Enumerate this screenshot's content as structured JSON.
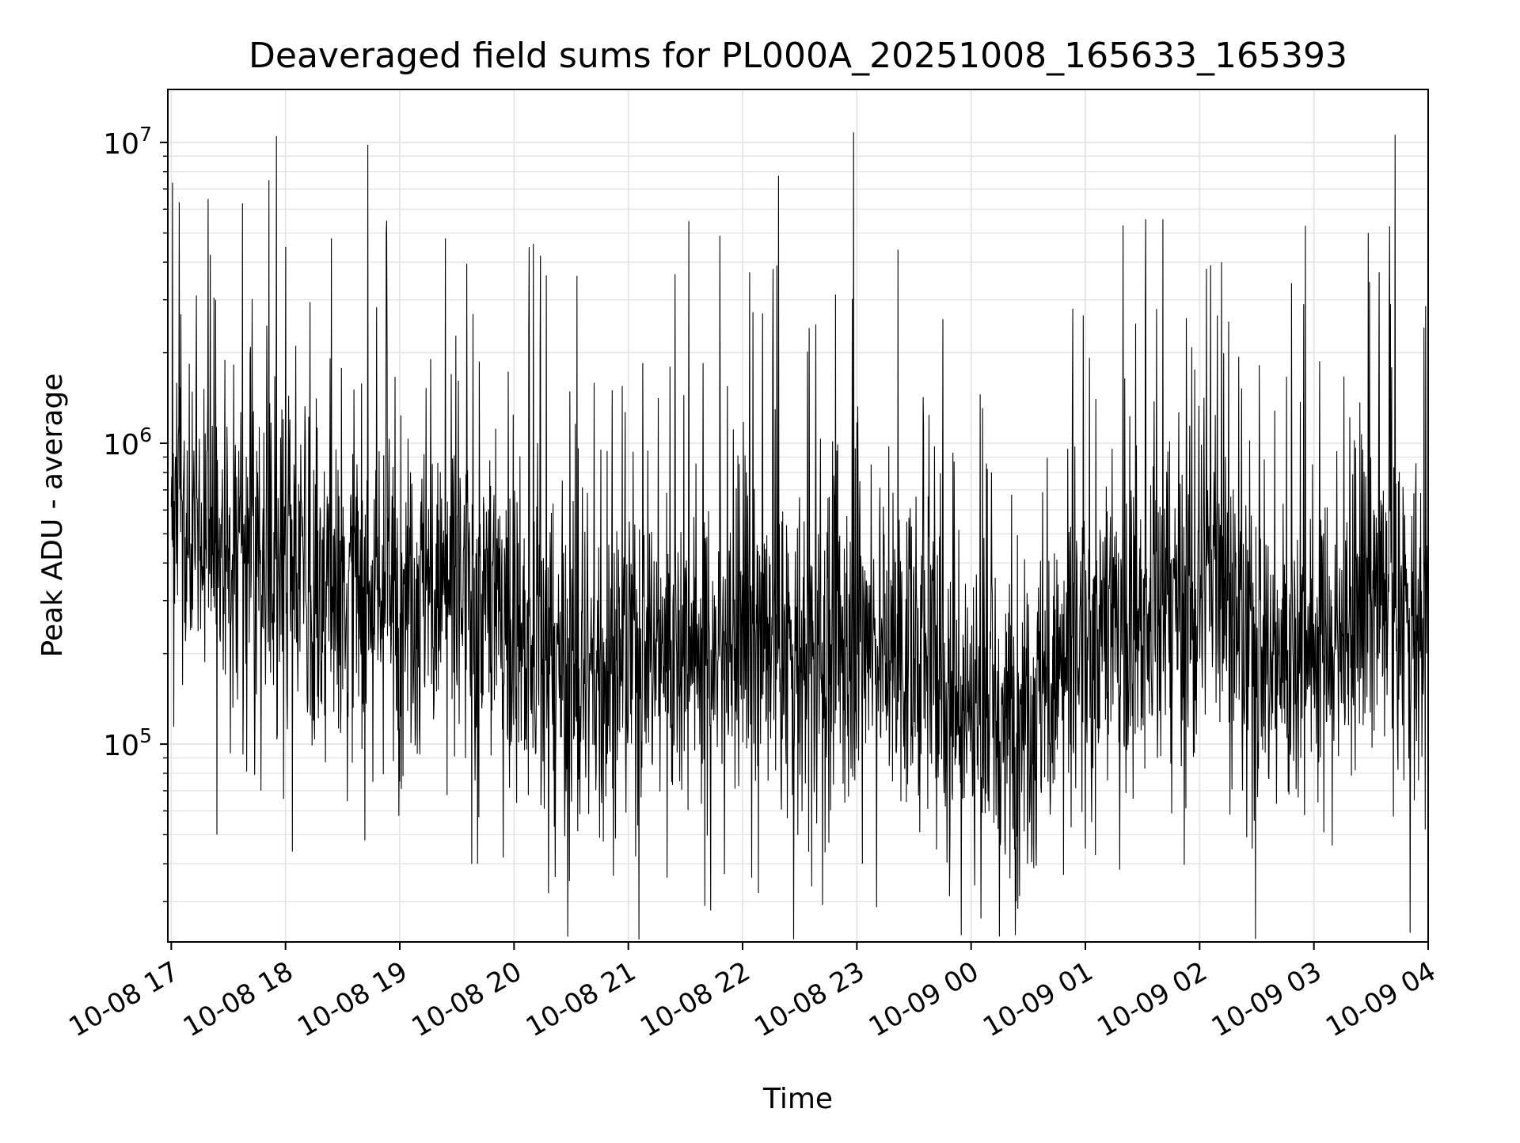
{
  "chart_data": {
    "type": "line",
    "title": "Deaveraged field sums for PL000A_20251008_165633_165393",
    "xlabel": "Time",
    "ylabel": "Peak ADU - average",
    "yscale": "log",
    "ylim": [
      22000,
      15000000
    ],
    "grid": true,
    "y_ticks": [
      {
        "value": 100000,
        "base": "10",
        "exp": "5"
      },
      {
        "value": 1000000,
        "base": "10",
        "exp": "6"
      },
      {
        "value": 10000000,
        "base": "10",
        "exp": "7"
      }
    ],
    "x_range_hours": [
      -0.03,
      11.0
    ],
    "x_ticks": [
      {
        "hour": 0,
        "label": "10-08 17"
      },
      {
        "hour": 1,
        "label": "10-08 18"
      },
      {
        "hour": 2,
        "label": "10-08 19"
      },
      {
        "hour": 3,
        "label": "10-08 20"
      },
      {
        "hour": 4,
        "label": "10-08 21"
      },
      {
        "hour": 5,
        "label": "10-08 22"
      },
      {
        "hour": 6,
        "label": "10-08 23"
      },
      {
        "hour": 7,
        "label": "10-09 00"
      },
      {
        "hour": 8,
        "label": "10-09 01"
      },
      {
        "hour": 9,
        "label": "10-09 02"
      },
      {
        "hour": 10,
        "label": "10-09 03"
      },
      {
        "hour": 11,
        "label": "10-09 04"
      }
    ],
    "series": [
      {
        "name": "field sums",
        "color": "#000000",
        "sampling": "approx. 3000 samples, density near 270 per hour",
        "baseline_profile": [
          [
            0.0,
            500000
          ],
          [
            0.5,
            450000
          ],
          [
            1.0,
            420000
          ],
          [
            1.5,
            300000
          ],
          [
            2.0,
            330000
          ],
          [
            2.5,
            320000
          ],
          [
            3.0,
            250000
          ],
          [
            3.3,
            170000
          ],
          [
            3.6,
            150000
          ],
          [
            4.0,
            200000
          ],
          [
            4.5,
            230000
          ],
          [
            5.0,
            230000
          ],
          [
            5.5,
            190000
          ],
          [
            6.0,
            240000
          ],
          [
            6.5,
            190000
          ],
          [
            7.0,
            140000
          ],
          [
            7.5,
            130000
          ],
          [
            8.0,
            210000
          ],
          [
            8.5,
            260000
          ],
          [
            9.0,
            280000
          ],
          [
            9.15,
            480000
          ],
          [
            9.3,
            250000
          ],
          [
            9.6,
            190000
          ],
          [
            10.0,
            230000
          ],
          [
            10.3,
            250000
          ],
          [
            10.6,
            300000
          ],
          [
            11.0,
            230000
          ]
        ],
        "notable_peaks": [
          {
            "hour": 0.92,
            "value": 10500000
          },
          {
            "hour": 5.97,
            "value": 10800000
          },
          {
            "hour": 8.33,
            "value": 5300000
          },
          {
            "hour": 1.88,
            "value": 5000000
          },
          {
            "hour": 4.8,
            "value": 4900000
          },
          {
            "hour": 1.4,
            "value": 4800000
          },
          {
            "hour": 2.4,
            "value": 4800000
          },
          {
            "hour": 3.17,
            "value": 4600000
          },
          {
            "hour": 6.36,
            "value": 4400000
          },
          {
            "hour": 1.0,
            "value": 4500000
          },
          {
            "hour": 3.23,
            "value": 4200000
          },
          {
            "hour": 9.19,
            "value": 4000000
          },
          {
            "hour": 5.3,
            "value": 3900000
          },
          {
            "hour": 5.06,
            "value": 3700000
          },
          {
            "hour": 9.06,
            "value": 3800000
          },
          {
            "hour": 3.55,
            "value": 3600000
          },
          {
            "hour": 0.22,
            "value": 3100000
          },
          {
            "hour": 0.39,
            "value": 3000000
          },
          {
            "hour": 10.67,
            "value": 2900000
          },
          {
            "hour": 7.89,
            "value": 2800000
          },
          {
            "hour": 8.44,
            "value": 2500000
          },
          {
            "hour": 9.91,
            "value": 2900000
          }
        ],
        "notable_troughs": [
          {
            "hour": 4.72,
            "value": 28000
          },
          {
            "hour": 4.67,
            "value": 29000
          },
          {
            "hour": 3.3,
            "value": 32000
          },
          {
            "hour": 5.14,
            "value": 32000
          },
          {
            "hour": 4.34,
            "value": 36000
          },
          {
            "hour": 4.84,
            "value": 37000
          },
          {
            "hour": 5.08,
            "value": 36000
          },
          {
            "hour": 2.63,
            "value": 40000
          },
          {
            "hour": 2.68,
            "value": 40000
          },
          {
            "hour": 6.05,
            "value": 40000
          },
          {
            "hour": 1.06,
            "value": 44000
          },
          {
            "hour": 0.4,
            "value": 50000
          },
          {
            "hour": 7.3,
            "value": 43000
          },
          {
            "hour": 10.16,
            "value": 46000
          },
          {
            "hour": 9.41,
            "value": 49000
          },
          {
            "hour": 8.0,
            "value": 45000
          }
        ]
      }
    ]
  }
}
